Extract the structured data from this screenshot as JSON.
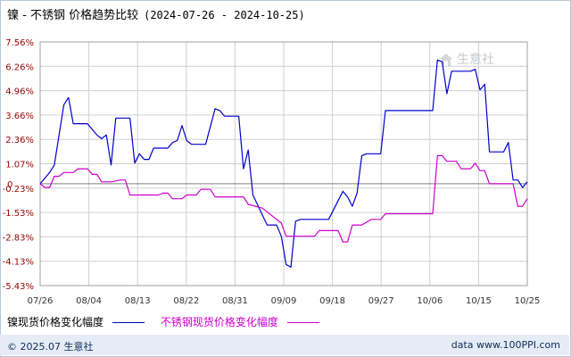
{
  "title": {
    "text": "镍 - 不锈钢 价格趋势比较",
    "date_range": "(2024-07-26 - 2024-10-25)"
  },
  "legend": {
    "series_1": "镍现货价格变化幅度",
    "series_2": "不锈钢现货价格变化幅度"
  },
  "watermark": "生意社",
  "footer": {
    "left": "© 2025.07 生意社",
    "right": "data www.100PPI.com"
  },
  "colors": {
    "nickel": "#0000cc",
    "stainless": "#cc00cc",
    "axis_text_y": "#990000",
    "grid": "#d0d0d0",
    "zero_line": "#808080",
    "footer_bg": "#e6ecf5"
  },
  "chart_data": {
    "type": "line",
    "title": "镍 - 不锈钢 价格趋势比较",
    "x_ticks": [
      "07/26",
      "08/04",
      "08/13",
      "08/22",
      "08/31",
      "09/09",
      "09/18",
      "09/27",
      "10/06",
      "10/15",
      "10/25"
    ],
    "y_ticks": [
      "7.56%",
      "6.26%",
      "4.96%",
      "3.66%",
      "2.36%",
      "1.07%",
      "-0.23%",
      "-1.53%",
      "-2.83%",
      "-4.13%",
      "-5.43%"
    ],
    "y_zero_label": "0",
    "ylim": [
      -5.43,
      7.56
    ],
    "xlim_days": [
      0,
      91
    ],
    "grid": true,
    "legend_position": "bottom",
    "series": [
      {
        "name": "镍现货价格变化幅度",
        "points": [
          [
            0,
            0.0
          ],
          [
            2,
            0.6
          ],
          [
            3,
            1.0
          ],
          [
            5,
            4.2
          ],
          [
            6,
            4.6
          ],
          [
            7,
            3.2
          ],
          [
            8,
            3.2
          ],
          [
            10,
            3.2
          ],
          [
            12,
            2.6
          ],
          [
            13,
            2.4
          ],
          [
            14,
            2.6
          ],
          [
            15,
            1.0
          ],
          [
            16,
            3.5
          ],
          [
            18,
            3.5
          ],
          [
            19,
            3.5
          ],
          [
            20,
            1.1
          ],
          [
            21,
            1.6
          ],
          [
            22,
            1.3
          ],
          [
            23,
            1.3
          ],
          [
            24,
            1.9
          ],
          [
            27,
            1.9
          ],
          [
            28,
            2.2
          ],
          [
            29,
            2.3
          ],
          [
            30,
            3.1
          ],
          [
            31,
            2.3
          ],
          [
            32,
            2.1
          ],
          [
            35,
            2.1
          ],
          [
            37,
            4.0
          ],
          [
            38,
            3.9
          ],
          [
            39,
            3.6
          ],
          [
            42,
            3.6
          ],
          [
            43,
            0.8
          ],
          [
            44,
            1.8
          ],
          [
            45,
            -0.6
          ],
          [
            48,
            -2.2
          ],
          [
            50,
            -2.2
          ],
          [
            51,
            -2.8
          ],
          [
            52,
            -4.3
          ],
          [
            53,
            -4.45
          ],
          [
            54,
            -2.0
          ],
          [
            55,
            -1.9
          ],
          [
            60,
            -1.9
          ],
          [
            61,
            -1.9
          ],
          [
            64,
            -0.4
          ],
          [
            65,
            -0.7
          ],
          [
            66,
            -1.2
          ],
          [
            67,
            -0.5
          ],
          [
            68,
            1.5
          ],
          [
            69,
            1.6
          ],
          [
            72,
            1.6
          ],
          [
            73,
            3.9
          ],
          [
            83,
            3.9
          ],
          [
            84,
            6.6
          ],
          [
            85,
            6.5
          ],
          [
            86,
            4.8
          ],
          [
            87,
            6.0
          ],
          [
            89,
            6.0
          ],
          [
            91,
            6.0
          ],
          [
            92,
            6.1
          ],
          [
            93,
            5.0
          ],
          [
            94,
            5.3
          ],
          [
            95,
            1.7
          ],
          [
            98,
            1.7
          ],
          [
            99,
            2.2
          ],
          [
            100,
            0.2
          ],
          [
            101,
            0.2
          ],
          [
            102,
            -0.2
          ],
          [
            103,
            0.1
          ]
        ]
      },
      {
        "name": "不锈钢现货价格变化幅度",
        "points": [
          [
            0,
            0.0
          ],
          [
            1,
            -0.2
          ],
          [
            2,
            -0.2
          ],
          [
            3,
            0.4
          ],
          [
            4,
            0.4
          ],
          [
            5,
            0.6
          ],
          [
            7,
            0.6
          ],
          [
            8,
            0.8
          ],
          [
            10,
            0.8
          ],
          [
            11,
            0.5
          ],
          [
            12,
            0.5
          ],
          [
            13,
            0.1
          ],
          [
            15,
            0.1
          ],
          [
            17,
            0.2
          ],
          [
            18,
            0.2
          ],
          [
            19,
            -0.6
          ],
          [
            25,
            -0.6
          ],
          [
            26,
            -0.5
          ],
          [
            27,
            -0.5
          ],
          [
            28,
            -0.8
          ],
          [
            30,
            -0.8
          ],
          [
            31,
            -0.6
          ],
          [
            33,
            -0.6
          ],
          [
            34,
            -0.3
          ],
          [
            36,
            -0.3
          ],
          [
            37,
            -0.7
          ],
          [
            43,
            -0.7
          ],
          [
            44,
            -1.1
          ],
          [
            47,
            -1.3
          ],
          [
            51,
            -2.1
          ],
          [
            52,
            -2.8
          ],
          [
            58,
            -2.8
          ],
          [
            59,
            -2.5
          ],
          [
            63,
            -2.5
          ],
          [
            64,
            -3.1
          ],
          [
            65,
            -3.1
          ],
          [
            66,
            -2.2
          ],
          [
            68,
            -2.2
          ],
          [
            70,
            -1.9
          ],
          [
            72,
            -1.9
          ],
          [
            73,
            -1.6
          ],
          [
            83,
            -1.6
          ],
          [
            84,
            1.5
          ],
          [
            85,
            1.5
          ],
          [
            86,
            1.2
          ],
          [
            88,
            1.2
          ],
          [
            89,
            0.8
          ],
          [
            91,
            0.8
          ],
          [
            92,
            1.1
          ],
          [
            93,
            0.7
          ],
          [
            94,
            0.7
          ],
          [
            95,
            0.0
          ],
          [
            100,
            0.0
          ],
          [
            101,
            -1.2
          ],
          [
            102,
            -1.2
          ],
          [
            103,
            -0.8
          ]
        ]
      }
    ]
  }
}
